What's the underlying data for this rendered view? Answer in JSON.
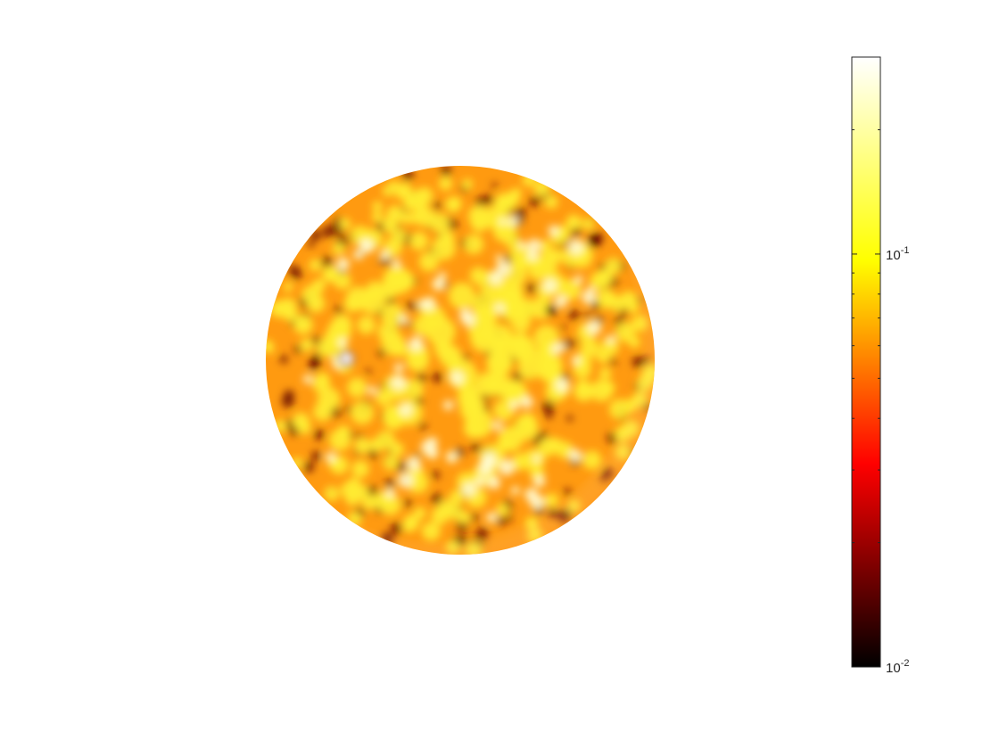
{
  "chart_data": {
    "type": "heatmap",
    "surface": "sphere",
    "colormap": "hot",
    "color_scale": "log",
    "colorbar": {
      "placement": "right",
      "range": [
        0.01,
        0.3
      ],
      "major_ticks": [
        {
          "value": 0.01,
          "base": "10",
          "exponent": "-2"
        },
        {
          "value": 0.1,
          "base": "10",
          "exponent": "-1"
        }
      ],
      "minor_ticks": [
        0.02,
        0.03,
        0.04,
        0.05,
        0.06,
        0.07,
        0.08,
        0.09,
        0.2,
        0.3
      ]
    },
    "colormap_stops": [
      "#000000",
      "#ff0000",
      "#ffff00",
      "#ffffff"
    ],
    "title": "",
    "xlabel": "",
    "ylabel": ""
  }
}
